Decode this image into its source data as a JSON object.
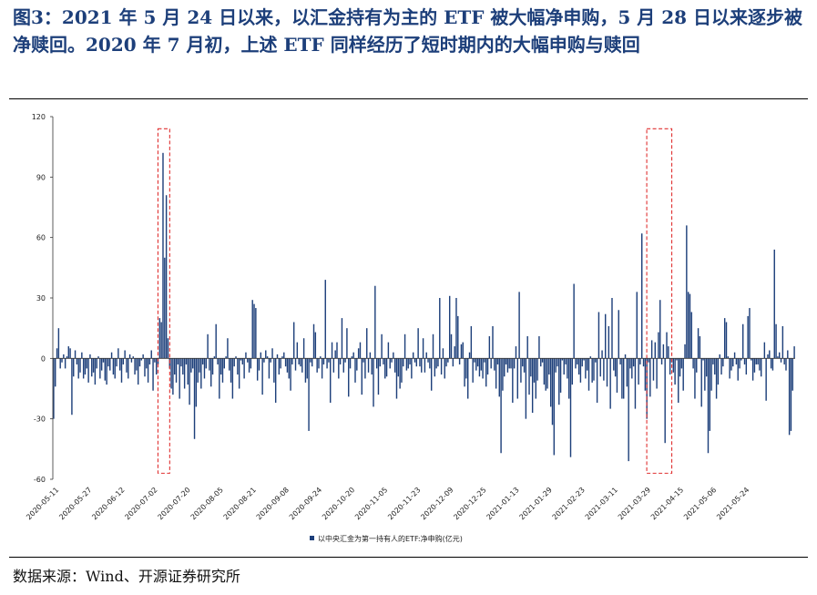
{
  "title": "图3：2021 年 5 月 24 日以来，以汇金持有为主的 ETF 被大幅净申购，5 月 28 日以来逐步被净赎回。2020 年 7 月初，上述 ETF 同样经历了短时期内的大幅申购与赎回",
  "source": "数据来源：Wind、开源证券研究所",
  "chart_data": {
    "type": "bar",
    "series_color": "#1d3f7a",
    "highlight_color": "#e03030",
    "ylim": [
      -60,
      120
    ],
    "yticks": [
      "120",
      "90",
      "60",
      "30",
      "0",
      "-30",
      "-60"
    ],
    "xticks": [
      "2020-05-11",
      "2020-05-27",
      "2020-06-12",
      "2020-07-02",
      "2020-07-20",
      "2020-08-05",
      "2020-08-21",
      "2020-09-08",
      "2020-09-24",
      "2020-10-20",
      "2020-11-05",
      "2020-11-23",
      "2020-12-09",
      "2020-12-25",
      "2021-01-13",
      "2021-01-29",
      "2021-02-23",
      "2021-03-11",
      "2021-03-29",
      "2021-04-15",
      "2021-05-06",
      "2021-05-24"
    ],
    "legend": "以中央汇金为第一持有人的ETF:净申购(亿元)",
    "highlights": [
      {
        "from_index": 64,
        "to_index": 69
      },
      {
        "from_index": 359,
        "to_index": 372
      }
    ],
    "series": [
      {
        "name": "以中央汇金为第一持有人的ETF:净申购(亿元)",
        "values": [
          -30,
          -14,
          5,
          15,
          -5,
          -2,
          2,
          -5,
          1,
          6,
          5,
          -28,
          -9,
          4,
          -3,
          -10,
          -7,
          3,
          -10,
          -8,
          -5,
          -12,
          2,
          -9,
          -7,
          -13,
          -5,
          1,
          -10,
          -6,
          -2,
          -11,
          -13,
          -4,
          -6,
          3,
          -8,
          -10,
          -4,
          5,
          -6,
          -12,
          -3,
          4,
          -7,
          -10,
          2,
          -2,
          1,
          -8,
          -6,
          -13,
          -4,
          -1,
          2,
          -9,
          -5,
          -12,
          -3,
          4,
          -16,
          -2,
          -8,
          -3,
          20,
          18,
          102,
          50,
          81,
          10,
          -5,
          -15,
          -18,
          -8,
          -12,
          -3,
          -20,
          -4,
          -8,
          -15,
          -3,
          -13,
          -23,
          -7,
          -5,
          -40,
          -24,
          -12,
          -7,
          -15,
          -3,
          -10,
          -5,
          12,
          -6,
          -14,
          -8,
          1,
          17,
          -3,
          -20,
          -8,
          -12,
          -5,
          1,
          10,
          -6,
          -12,
          -20,
          -4,
          1,
          -8,
          -15,
          -1,
          -3,
          -10,
          3,
          -2,
          -7,
          -5,
          29,
          27,
          25,
          -11,
          -6,
          3,
          -18,
          -2,
          4,
          1,
          -10,
          -2,
          5,
          -12,
          -22,
          2,
          -8,
          -5,
          1,
          3,
          -4,
          -7,
          -10,
          -16,
          -3,
          18,
          -6,
          8,
          -3,
          -4,
          -7,
          10,
          -12,
          -10,
          -36,
          -2,
          -4,
          17,
          13,
          -7,
          -5,
          1,
          -10,
          -3,
          39,
          -5,
          -2,
          -22,
          8,
          -7,
          4,
          8,
          -10,
          -3,
          20,
          -7,
          -2,
          15,
          -19,
          -5,
          1,
          3,
          -12,
          -6,
          5,
          8,
          -18,
          -2,
          -10,
          15,
          -7,
          3,
          -8,
          -24,
          36,
          -5,
          -18,
          -4,
          12,
          -3,
          -10,
          -9,
          8,
          -5,
          -2,
          3,
          -7,
          -20,
          -9,
          -15,
          -12,
          -4,
          12,
          -6,
          -5,
          -3,
          -10,
          3,
          -2,
          -4,
          15,
          -4,
          -7,
          10,
          -7,
          3,
          -2,
          -5,
          -16,
          12,
          -9,
          -5,
          -4,
          30,
          -8,
          5,
          -10,
          -4,
          -2,
          31,
          12,
          -4,
          6,
          30,
          21,
          -3,
          7,
          8,
          -14,
          -10,
          -20,
          3,
          16,
          -12,
          -2,
          -6,
          -4,
          -9,
          -6,
          -10,
          -2,
          -14,
          -8,
          11,
          -5,
          16,
          -6,
          -15,
          -3,
          -19,
          -47,
          -16,
          -9,
          -3,
          -7,
          -5,
          -5,
          -22,
          -5,
          6,
          -20,
          33,
          -12,
          -4,
          -7,
          -30,
          11,
          -18,
          -9,
          -27,
          -12,
          -20,
          -11,
          11,
          -4,
          -2,
          -13,
          -16,
          -15,
          -8,
          -24,
          -33,
          -48,
          -7,
          -4,
          -23,
          -17,
          -1,
          -8,
          -3,
          -10,
          -20,
          -49,
          -13,
          37,
          -5,
          -3,
          -8,
          -12,
          -4,
          -1,
          -10,
          -6,
          -16,
          1,
          -12,
          -11,
          -2,
          -22,
          23,
          -9,
          4,
          -11,
          22,
          -14,
          16,
          -25,
          30,
          -6,
          -9,
          -17,
          24,
          -3,
          -20,
          -20,
          2,
          -14,
          -51,
          -5,
          -10,
          -4,
          -25,
          33,
          -13,
          -3,
          62,
          -4,
          -16,
          -30,
          -2,
          -19,
          9,
          -11,
          8,
          -15,
          13,
          29,
          -3,
          7,
          -42,
          13,
          6,
          -8,
          -2,
          -7,
          -13,
          -1,
          -22,
          -9,
          -5,
          -16,
          7,
          66,
          33,
          32,
          23,
          -5,
          -20,
          -7,
          15,
          11,
          -24,
          -1,
          -16,
          -9,
          -47,
          -36,
          -16,
          -3,
          -8,
          -20,
          -13,
          2,
          -8,
          -4,
          20,
          18,
          1,
          -10,
          -6,
          -4,
          3,
          -3,
          -11,
          -5,
          -1,
          17,
          -3,
          -8,
          21,
          25,
          -1,
          -11,
          -7,
          -3,
          -3,
          -6,
          -9,
          0,
          8,
          -21,
          2,
          4,
          -5,
          -6,
          54,
          17,
          1,
          3,
          -2,
          16,
          -3,
          -6,
          4,
          -38,
          -36,
          -16,
          6
        ]
      }
    ]
  }
}
